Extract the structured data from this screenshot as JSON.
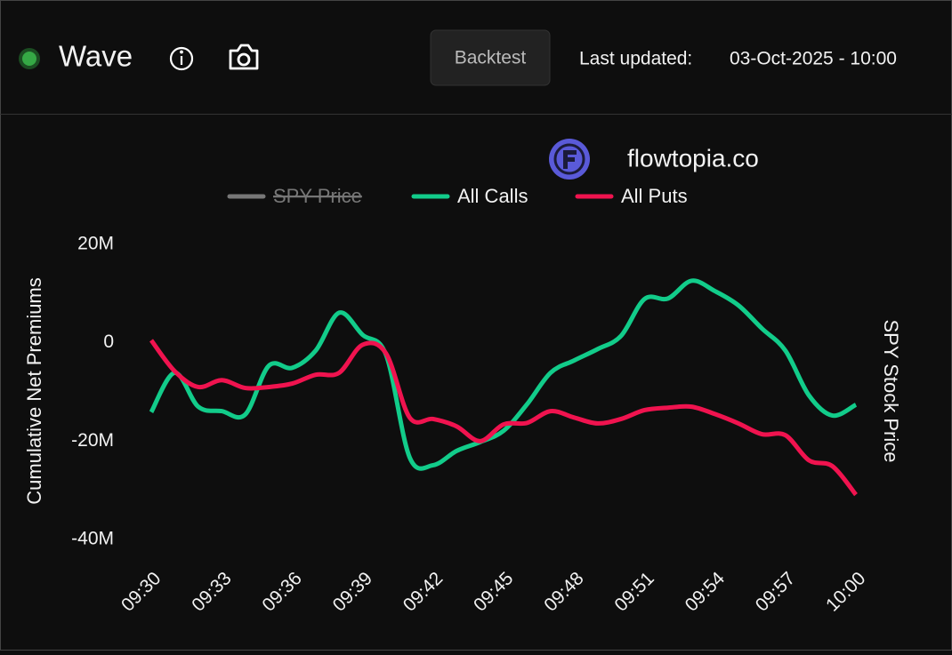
{
  "header": {
    "title": "Wave",
    "button": "Backtest",
    "updated_label": "Last updated:",
    "updated_value": "03-Oct-2025 - 10:00"
  },
  "chart_data": {
    "type": "line",
    "watermark": "flowtopia.co",
    "y_label": "Cumulative Net Premiums",
    "y2_label": "SPY Stock Price",
    "categories": [
      "09:30",
      null,
      null,
      "09:33",
      null,
      null,
      "09:36",
      null,
      null,
      "09:39",
      null,
      null,
      "09:42",
      null,
      null,
      "09:45",
      null,
      null,
      "09:48",
      null,
      null,
      "09:51",
      null,
      null,
      "09:54",
      null,
      null,
      "09:57",
      null,
      null,
      "10:00"
    ],
    "legend": [
      {
        "name": "SPY Price",
        "color": "#777777",
        "hidden": true
      }
    ],
    "series": [
      {
        "name": "All Calls",
        "color": "#12cc8a",
        "values": [
          -14100000,
          -6100000,
          -13000000,
          -13900000,
          -14600000,
          -4700000,
          -5100000,
          -1600000,
          6100000,
          1600000,
          -2500000,
          -23300000,
          -24900000,
          -22000000,
          -20200000,
          -17900000,
          -12500000,
          -6100000,
          -3600000,
          -1300000,
          1400000,
          8900000,
          9000000,
          12600000,
          10500000,
          7600000,
          2900000,
          -1600000,
          -10700000,
          -14800000,
          -12600000
        ]
      },
      {
        "name": "All Puts",
        "color": "#f0134f",
        "values": [
          500000,
          -5800000,
          -9000000,
          -7600000,
          -9200000,
          -9000000,
          -8300000,
          -6500000,
          -6100000,
          -400000,
          -2200000,
          -15200000,
          -15500000,
          -17000000,
          -20000000,
          -16600000,
          -16300000,
          -13900000,
          -15200000,
          -16400000,
          -15500000,
          -13700000,
          -13200000,
          -13000000,
          -14500000,
          -16400000,
          -18600000,
          -18800000,
          -23900000,
          -25100000,
          -30900000
        ]
      }
    ],
    "ylim": [
      -40000000,
      20000000
    ],
    "yticks": [
      {
        "value": -40000000,
        "label": "-40M"
      },
      {
        "value": -20000000,
        "label": "-20M"
      },
      0,
      {
        "value": 20000000,
        "label": "20M"
      }
    ]
  }
}
